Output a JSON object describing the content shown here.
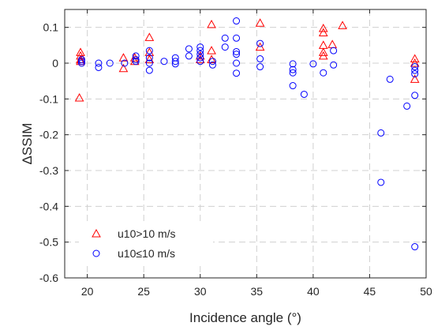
{
  "chart_data": {
    "type": "scatter",
    "xlabel": "Incidence angle (°)",
    "ylabel": "ΔSSIM",
    "xlim": [
      18,
      50
    ],
    "ylim": [
      -0.6,
      0.15
    ],
    "xticks": [
      20,
      25,
      30,
      35,
      40,
      45,
      50
    ],
    "yticks": [
      0.1,
      0,
      -0.1,
      -0.2,
      -0.3,
      -0.4,
      -0.5,
      -0.6
    ],
    "xtick_labels": [
      "20",
      "25",
      "30",
      "35",
      "40",
      "45",
      "50"
    ],
    "ytick_labels": [
      "0.1",
      "0",
      "-0.1",
      "-0.2",
      "-0.3",
      "-0.4",
      "-0.5",
      "-0.6"
    ],
    "grid": true,
    "legend_position": "bottom-left",
    "series": [
      {
        "name": "u10>10 m/s",
        "marker": "triangle",
        "color": "#ff0000",
        "points": [
          [
            19.4,
            0.03
          ],
          [
            19.4,
            0.02
          ],
          [
            19.4,
            0.01
          ],
          [
            19.4,
            0.005
          ],
          [
            19.3,
            -0.097
          ],
          [
            23.2,
            0.015
          ],
          [
            23.2,
            -0.015
          ],
          [
            24.2,
            0.015
          ],
          [
            24.2,
            0.005
          ],
          [
            25.5,
            0.072
          ],
          [
            25.5,
            0.03
          ],
          [
            25.5,
            0.01
          ],
          [
            30.0,
            0.02
          ],
          [
            30.0,
            0.01
          ],
          [
            31.0,
            0.108
          ],
          [
            31.0,
            0.035
          ],
          [
            31.0,
            0.01
          ],
          [
            35.3,
            0.112
          ],
          [
            35.3,
            0.045
          ],
          [
            40.9,
            0.097
          ],
          [
            40.9,
            0.085
          ],
          [
            40.9,
            0.05
          ],
          [
            40.9,
            0.03
          ],
          [
            40.9,
            0.02
          ],
          [
            41.7,
            0.052
          ],
          [
            42.6,
            0.105
          ],
          [
            49.0,
            0.012
          ],
          [
            49.0,
            0.0
          ],
          [
            49.0,
            -0.045
          ]
        ]
      },
      {
        "name": "u10≤10 m/s",
        "marker": "circle",
        "color": "#0000ff",
        "points": [
          [
            19.5,
            0.01
          ],
          [
            19.5,
            0.005
          ],
          [
            19.5,
            0.0
          ],
          [
            21.0,
            0.0
          ],
          [
            21.0,
            -0.012
          ],
          [
            22.0,
            0.0
          ],
          [
            23.3,
            0.0
          ],
          [
            24.3,
            0.02
          ],
          [
            24.3,
            0.01
          ],
          [
            24.3,
            0.005
          ],
          [
            25.5,
            0.035
          ],
          [
            25.5,
            0.015
          ],
          [
            25.5,
            0.0
          ],
          [
            25.5,
            -0.02
          ],
          [
            26.8,
            0.005
          ],
          [
            27.8,
            0.015
          ],
          [
            27.8,
            0.005
          ],
          [
            27.8,
            -0.002
          ],
          [
            29.0,
            0.04
          ],
          [
            29.0,
            0.02
          ],
          [
            30.0,
            0.045
          ],
          [
            30.0,
            0.035
          ],
          [
            30.0,
            0.025
          ],
          [
            30.0,
            0.015
          ],
          [
            30.0,
            0.005
          ],
          [
            31.1,
            0.005
          ],
          [
            31.1,
            -0.005
          ],
          [
            32.2,
            0.07
          ],
          [
            32.2,
            0.045
          ],
          [
            33.2,
            0.118
          ],
          [
            33.2,
            0.07
          ],
          [
            33.2,
            0.032
          ],
          [
            33.2,
            0.025
          ],
          [
            33.2,
            0.0
          ],
          [
            33.2,
            -0.028
          ],
          [
            35.3,
            0.055
          ],
          [
            35.3,
            0.012
          ],
          [
            35.3,
            -0.01
          ],
          [
            38.2,
            -0.002
          ],
          [
            38.2,
            -0.018
          ],
          [
            38.2,
            -0.027
          ],
          [
            38.2,
            -0.063
          ],
          [
            39.2,
            -0.087
          ],
          [
            40.0,
            -0.002
          ],
          [
            40.9,
            -0.027
          ],
          [
            41.8,
            0.035
          ],
          [
            41.8,
            -0.005
          ],
          [
            46.0,
            -0.195
          ],
          [
            46.0,
            -0.333
          ],
          [
            46.8,
            -0.045
          ],
          [
            48.3,
            -0.12
          ],
          [
            49.0,
            -0.01
          ],
          [
            49.0,
            -0.02
          ],
          [
            49.0,
            -0.03
          ],
          [
            49.0,
            -0.09
          ],
          [
            49.0,
            -0.513
          ]
        ]
      }
    ]
  }
}
